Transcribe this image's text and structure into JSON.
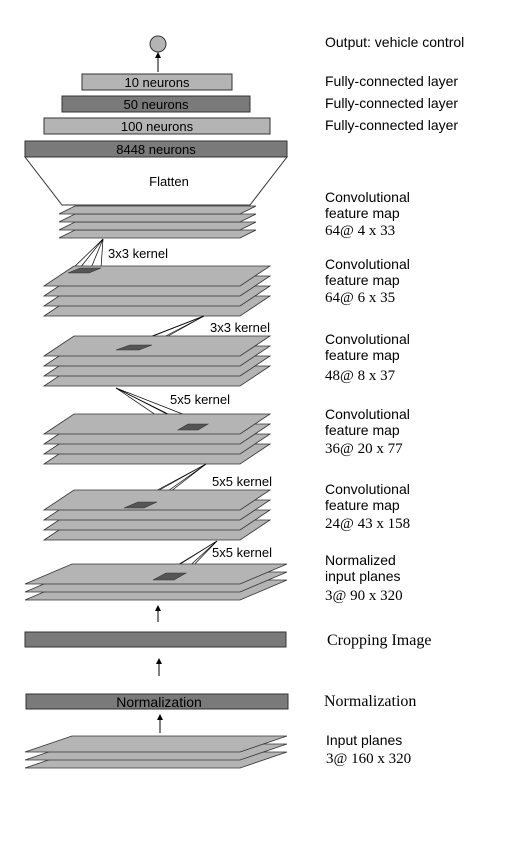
{
  "output": {
    "label": "Output: vehicle control"
  },
  "fc_layers": [
    {
      "box": "10 neurons",
      "label": "Fully-connected layer"
    },
    {
      "box": "50 neurons",
      "label": "Fully-connected layer"
    },
    {
      "box": "100 neurons",
      "label": "Fully-connected layer"
    },
    {
      "box": "8448 neurons",
      "label": ""
    }
  ],
  "flatten": {
    "label": "Flatten"
  },
  "conv_maps": [
    {
      "line1": "Convolutional",
      "line2": "feature map",
      "line3": "64@ 4 x 33",
      "kernel": "3x3 kernel"
    },
    {
      "line1": "Convolutional",
      "line2": "feature map",
      "line3": "64@ 6 x 35",
      "kernel": "3x3 kernel"
    },
    {
      "line1": "Convolutional",
      "line2": "feature map",
      "line3": "48@ 8 x 37",
      "kernel": "5x5 kernel"
    },
    {
      "line1": "Convolutional",
      "line2": "feature map",
      "line3": "36@ 20 x 77",
      "kernel": "5x5 kernel"
    },
    {
      "line1": "Convolutional",
      "line2": "feature map",
      "line3": "24@ 43 x 158",
      "kernel": "5x5 kernel"
    }
  ],
  "normalized_planes": {
    "line1": "Normalized",
    "line2": "input planes",
    "line3": "3@ 90 x 320"
  },
  "cropping": {
    "label": "Cropping Image"
  },
  "normalization": {
    "box": "Normalization",
    "label": "Normalization"
  },
  "input_planes": {
    "line1": "Input planes",
    "line2": "3@ 160 x 320"
  },
  "colors": {
    "light": "#b4b4b4",
    "dark": "#7a7a7a",
    "kernel": "#555555",
    "stroke": "#333333"
  }
}
